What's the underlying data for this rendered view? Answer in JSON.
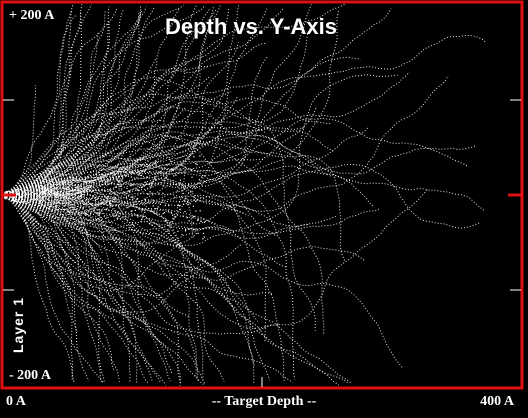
{
  "title": "Depth vs. Y-Axis",
  "y_top_label": "+ 200 A",
  "y_bottom_label": "- 200 A",
  "x_left_label": "0 A",
  "x_center_label": "-- Target Depth --",
  "x_right_label": "400 A",
  "layer_label": "Layer 1",
  "colors": {
    "background": "#000000",
    "frame": "#e01010",
    "trajectories": "#ffffff",
    "beam_marker": "#e01010"
  },
  "chart_data": {
    "type": "scatter",
    "title": "Depth vs. Y-Axis",
    "xlabel": "-- Target Depth --",
    "ylabel": "",
    "xlim": [
      0,
      400
    ],
    "ylim": [
      -200,
      200
    ],
    "x_unit": "A",
    "y_unit": "A",
    "grid": false,
    "legend": "none",
    "series": [
      {
        "name": "",
        "description_kind": "ion trajectories",
        "x": [],
        "y": []
      }
    ]
  }
}
